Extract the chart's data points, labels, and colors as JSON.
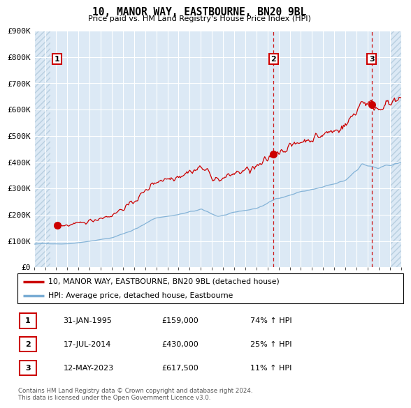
{
  "title": "10, MANOR WAY, EASTBOURNE, BN20 9BL",
  "subtitle": "Price paid vs. HM Land Registry's House Price Index (HPI)",
  "background_color": "#ffffff",
  "plot_bg_color": "#dce9f5",
  "hatch_color": "#b8cfe0",
  "grid_color": "#ffffff",
  "ylim": [
    0,
    900000
  ],
  "yticks": [
    0,
    100000,
    200000,
    300000,
    400000,
    500000,
    600000,
    700000,
    800000,
    900000
  ],
  "ytick_labels": [
    "£0",
    "£100K",
    "£200K",
    "£300K",
    "£400K",
    "£500K",
    "£600K",
    "£700K",
    "£800K",
    "£900K"
  ],
  "sale1_price": 159000,
  "sale1_label": "1",
  "sale1_x": 1995.08,
  "sale2_price": 430000,
  "sale2_label": "2",
  "sale2_x": 2014.54,
  "sale3_price": 617500,
  "sale3_label": "3",
  "sale3_x": 2023.37,
  "red_line_color": "#cc0000",
  "blue_line_color": "#7aadd4",
  "sale_dot_color": "#cc0000",
  "vline_color": "#cc0000",
  "table_rows": [
    {
      "num": "1",
      "date": "31-JAN-1995",
      "price": "£159,000",
      "hpi": "74% ↑ HPI"
    },
    {
      "num": "2",
      "date": "17-JUL-2014",
      "price": "£430,000",
      "hpi": "25% ↑ HPI"
    },
    {
      "num": "3",
      "date": "12-MAY-2023",
      "price": "£617,500",
      "hpi": "11% ↑ HPI"
    }
  ],
  "footnote": "Contains HM Land Registry data © Crown copyright and database right 2024.\nThis data is licensed under the Open Government Licence v3.0.",
  "xmin_year": 1993.0,
  "xmax_year": 2026.0,
  "hatch_xmax": 1994.5,
  "xtick_years": [
    1993,
    1994,
    1995,
    1996,
    1997,
    1998,
    1999,
    2000,
    2001,
    2002,
    2003,
    2004,
    2005,
    2006,
    2007,
    2008,
    2009,
    2010,
    2011,
    2012,
    2013,
    2014,
    2015,
    2016,
    2017,
    2018,
    2019,
    2020,
    2021,
    2022,
    2023,
    2024,
    2025,
    2026
  ]
}
